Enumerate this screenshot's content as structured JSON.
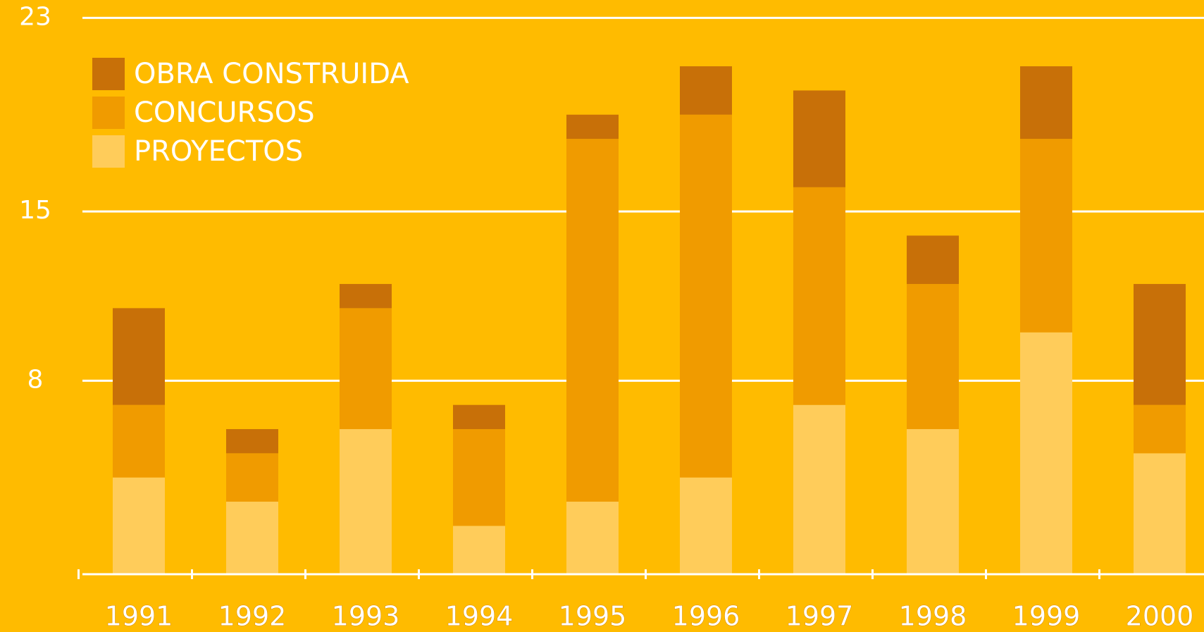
{
  "chart_data": {
    "type": "stacked_bar",
    "categories": [
      "1991",
      "1992",
      "1993",
      "1994",
      "1995",
      "1996",
      "1997",
      "1998",
      "1999",
      "2000"
    ],
    "series": [
      {
        "name": "OBRA CONSTRUIDA",
        "color": "#C87008",
        "values": [
          4,
          1,
          1,
          1,
          1,
          2,
          4,
          2,
          3,
          5
        ]
      },
      {
        "name": "CONCURSOS",
        "color": "#F09B00",
        "values": [
          3,
          2,
          5,
          4,
          15,
          15,
          9,
          6,
          8,
          2
        ]
      },
      {
        "name": "PROYECTOS",
        "color": "#FFCC5A",
        "values": [
          4,
          3,
          6,
          2,
          3,
          4,
          7,
          6,
          10,
          5
        ]
      }
    ],
    "ylim": [
      0,
      23.7
    ],
    "yticks": [
      8,
      15,
      23
    ],
    "grid": true,
    "legend": "upper left"
  }
}
